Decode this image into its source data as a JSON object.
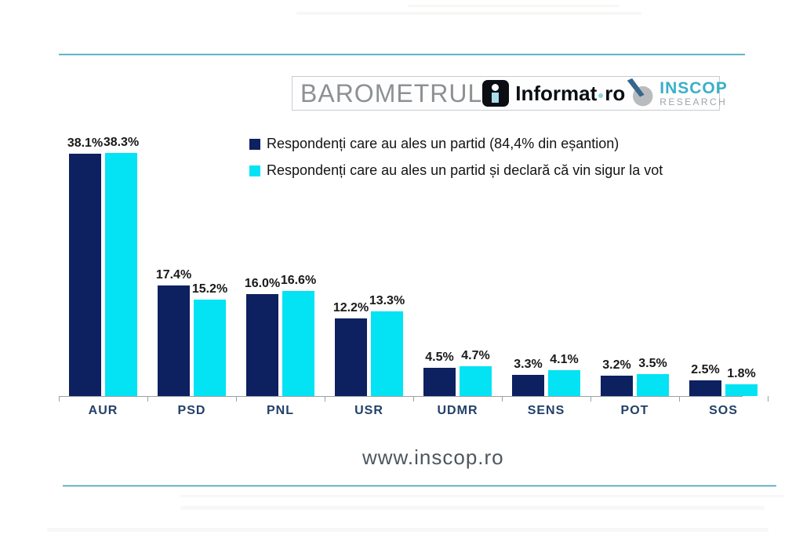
{
  "header": {
    "title": "BAROMETRUL",
    "informat_logo": {
      "icon": "i",
      "text": "Informat",
      "suffix": "ro"
    },
    "inscop_logo": {
      "name": "INSCOP",
      "subtitle": "RESEARCH"
    }
  },
  "chart_data": {
    "type": "bar",
    "categories": [
      "AUR",
      "PSD",
      "PNL",
      "USR",
      "UDMR",
      "SENS",
      "POT",
      "SOS"
    ],
    "series": [
      {
        "name": "Respondenți care au ales un partid (84,4% din eșantion)",
        "color": "#0d2060",
        "values": [
          38.1,
          17.4,
          16.0,
          12.2,
          4.5,
          3.3,
          3.2,
          2.5
        ]
      },
      {
        "name": "Respondenți care au ales un partid și declară că vin sigur la vot",
        "color": "#04e3f4",
        "values": [
          38.3,
          15.2,
          16.6,
          13.3,
          4.7,
          4.1,
          3.5,
          1.8
        ]
      }
    ],
    "value_suffix": "%",
    "ylim": [
      0,
      42
    ],
    "grid": false,
    "legend_position": "top-right-of-plot",
    "title": "",
    "xlabel": "",
    "ylabel": ""
  },
  "footer": {
    "website": "www.inscop.ro"
  }
}
